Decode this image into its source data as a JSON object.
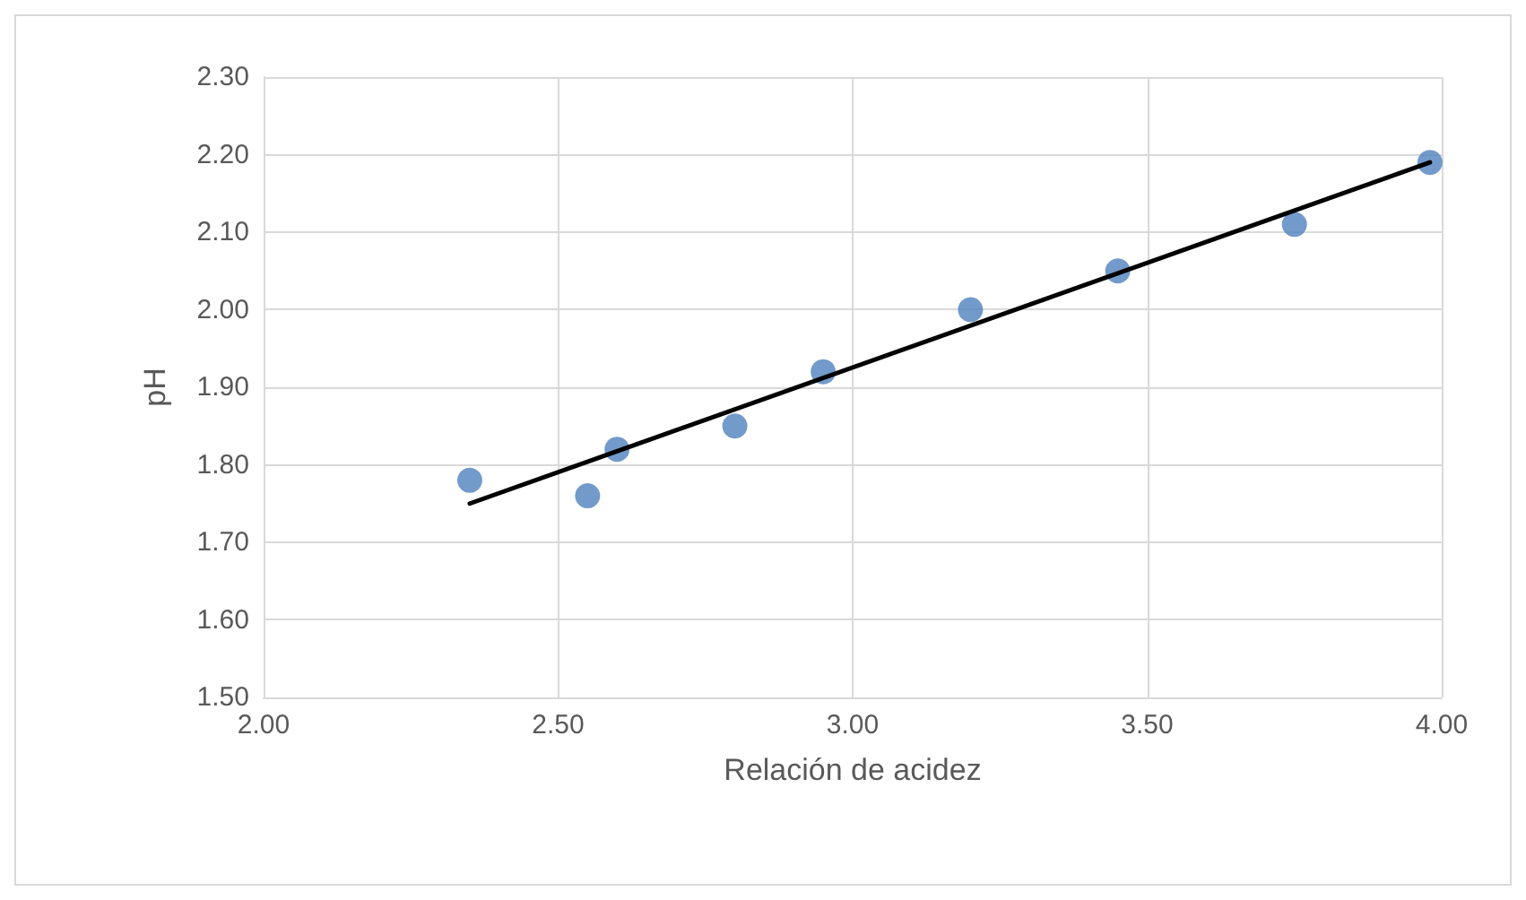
{
  "chart_data": {
    "type": "scatter",
    "xlabel": "Relación de acidez",
    "ylabel": "pH",
    "xlim": [
      2.0,
      4.0
    ],
    "xticks": [
      {
        "value": 2.0,
        "label": "2.00"
      },
      {
        "value": 2.5,
        "label": "2.50"
      },
      {
        "value": 3.0,
        "label": "3.00"
      },
      {
        "value": 3.5,
        "label": "3.50"
      },
      {
        "value": 4.0,
        "label": "4.00"
      }
    ],
    "ylim": [
      1.5,
      2.3
    ],
    "yticks": [
      {
        "value": 1.5,
        "label": "1.50"
      },
      {
        "value": 1.6,
        "label": "1.60"
      },
      {
        "value": 1.7,
        "label": "1.70"
      },
      {
        "value": 1.8,
        "label": "1.80"
      },
      {
        "value": 1.9,
        "label": "1.90"
      },
      {
        "value": 2.0,
        "label": "2.00"
      },
      {
        "value": 2.1,
        "label": "2.10"
      },
      {
        "value": 2.2,
        "label": "2.20"
      },
      {
        "value": 2.3,
        "label": "2.30"
      }
    ],
    "grid": true,
    "series": [
      {
        "color": "#4f81bd",
        "marker": "circle",
        "x": [
          2.35,
          2.55,
          2.6,
          2.8,
          2.95,
          3.2,
          3.45,
          3.75,
          3.98
        ],
        "values": [
          1.78,
          1.76,
          1.82,
          1.85,
          1.92,
          2.0,
          2.05,
          2.11,
          2.19
        ]
      },
      {
        "type": "line",
        "color": "#000000",
        "marker": "none",
        "line_style": "solid",
        "x": [
          2.35,
          3.98
        ],
        "values": [
          1.75,
          2.19
        ]
      }
    ]
  }
}
